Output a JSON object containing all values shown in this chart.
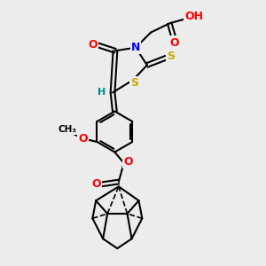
{
  "bg_color": "#ececec",
  "atom_colors": {
    "O": "#ff0000",
    "N": "#0000ff",
    "S": "#ccaa00",
    "H": "#008b8b",
    "C": "#000000"
  },
  "bond_color": "#000000",
  "bond_width": 1.5
}
